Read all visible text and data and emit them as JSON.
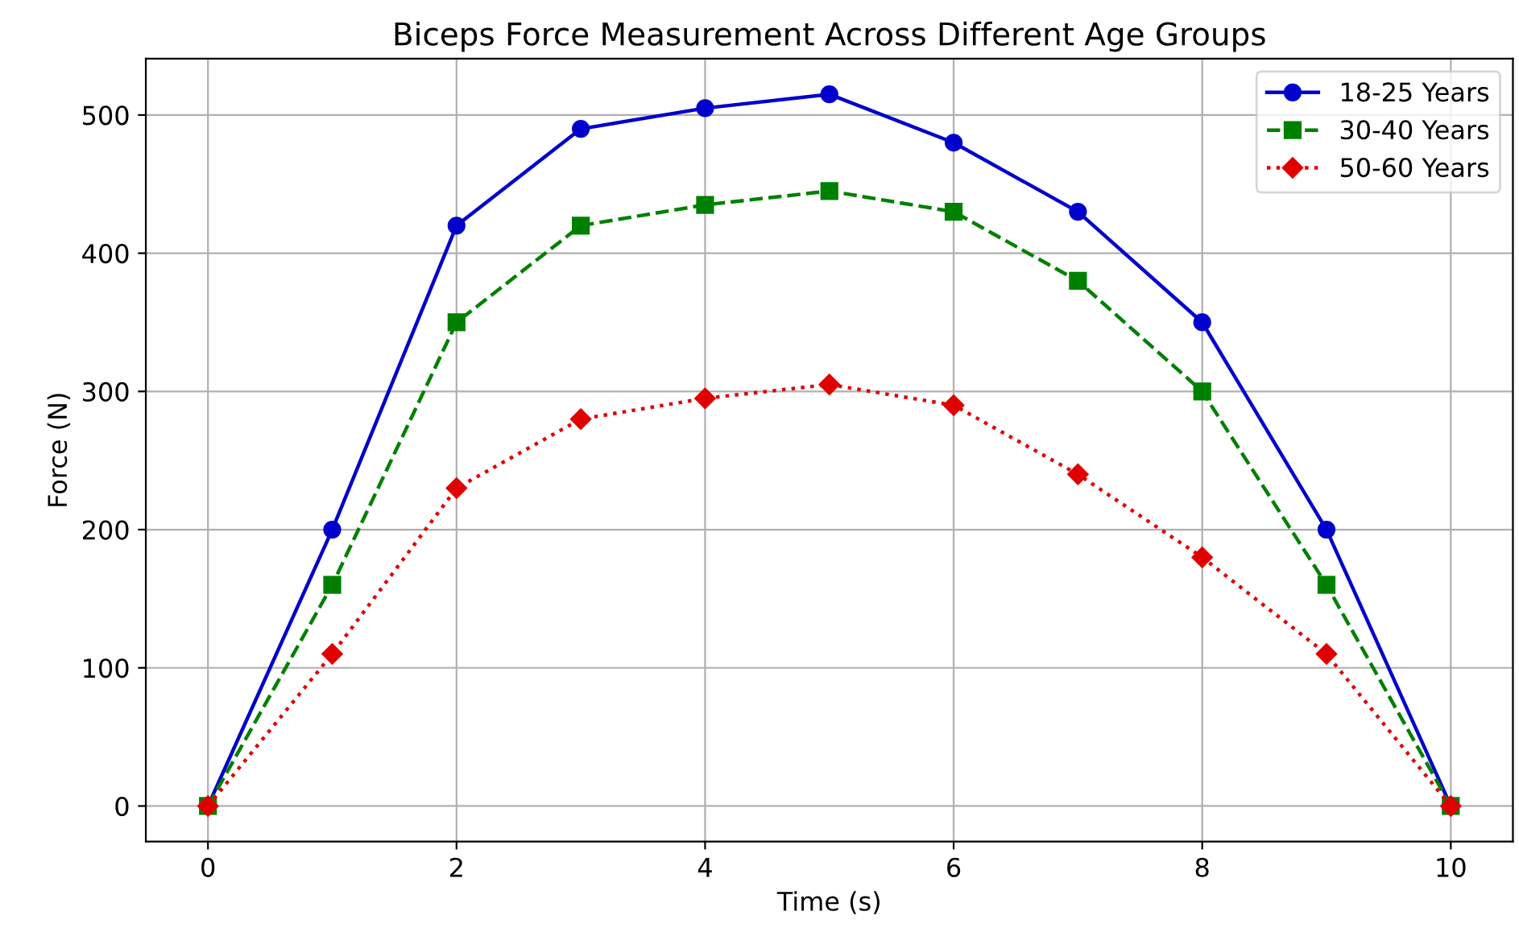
{
  "chart_data": {
    "type": "line",
    "title": "Biceps Force Measurement Across Different Age Groups",
    "xlabel": "Time (s)",
    "ylabel": "Force (N)",
    "x": [
      0,
      1,
      2,
      3,
      4,
      5,
      6,
      7,
      8,
      9,
      10
    ],
    "series": [
      {
        "name": "18-25 Years",
        "color": "#0000cc",
        "marker": "circle",
        "line_style": "solid",
        "values": [
          0,
          200,
          420,
          490,
          505,
          515,
          480,
          430,
          350,
          200,
          0
        ]
      },
      {
        "name": "30-40 Years",
        "color": "#008000",
        "marker": "square",
        "line_style": "dashed",
        "values": [
          0,
          160,
          350,
          420,
          435,
          445,
          430,
          380,
          300,
          160,
          0
        ]
      },
      {
        "name": "50-60 Years",
        "color": "#e00000",
        "marker": "diamond",
        "line_style": "dotted",
        "values": [
          0,
          110,
          230,
          280,
          295,
          305,
          290,
          240,
          180,
          110,
          0
        ]
      }
    ],
    "xlim": [
      -0.5,
      10.5
    ],
    "ylim": [
      -25.75,
      540.75
    ],
    "xticks": [
      0,
      2,
      4,
      6,
      8,
      10
    ],
    "yticks": [
      0,
      100,
      200,
      300,
      400,
      500
    ],
    "grid": true,
    "legend": "top right"
  }
}
